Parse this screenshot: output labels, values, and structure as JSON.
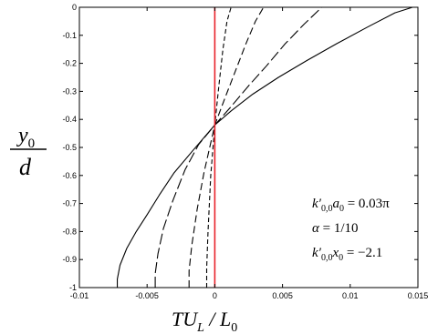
{
  "chart_data": {
    "type": "line",
    "xlim": [
      -0.01,
      0.015
    ],
    "ylim": [
      -1,
      0
    ],
    "grid": false,
    "x_ticks": [
      {
        "v": -0.01,
        "label": "-0.01"
      },
      {
        "v": -0.005,
        "label": "-0.005"
      },
      {
        "v": 0,
        "label": "0"
      },
      {
        "v": 0.005,
        "label": "0.005"
      },
      {
        "v": 0.01,
        "label": "0.01"
      },
      {
        "v": 0.015,
        "label": "0.015"
      }
    ],
    "y_ticks": [
      {
        "v": 0,
        "label": "0"
      },
      {
        "v": -0.1,
        "label": "-0.1"
      },
      {
        "v": -0.2,
        "label": "-0.2"
      },
      {
        "v": -0.3,
        "label": "-0.3"
      },
      {
        "v": -0.4,
        "label": "-0.4"
      },
      {
        "v": -0.5,
        "label": "-0.5"
      },
      {
        "v": -0.6,
        "label": "-0.6"
      },
      {
        "v": -0.7,
        "label": "-0.7"
      },
      {
        "v": -0.8,
        "label": "-0.8"
      },
      {
        "v": -0.9,
        "label": "-0.9"
      },
      {
        "v": -1,
        "label": "-1"
      }
    ],
    "xlabel": {
      "T": "TU",
      "sub": "L",
      "slash": " / L",
      "sub2": "0"
    },
    "ylabel": {
      "num": "y",
      "num_sub": "0",
      "den": "d"
    },
    "annotations": {
      "line1": {
        "k": "k′",
        "k_sub": "0,0",
        "var": "a",
        "var_sub": "0",
        "rhs": " = 0.03π"
      },
      "line2": {
        "lhs": "α",
        "rhs": " = 1/10"
      },
      "line3": {
        "k": "k′",
        "k_sub": "0,0",
        "var": "x",
        "var_sub": "0",
        "rhs": " = −2.1"
      }
    },
    "series": [
      {
        "style": "solid",
        "color": "#000000",
        "x": [
          -0.0072,
          -0.0072,
          -0.007,
          -0.0065,
          -0.0058,
          -0.005,
          -0.0041,
          -0.003,
          -0.0016,
          0,
          0.0012,
          0.0028,
          0.0047,
          0.0068,
          0.009,
          0.0113,
          0.0133,
          0.0146
        ],
        "y": [
          -1,
          -0.97,
          -0.92,
          -0.86,
          -0.8,
          -0.74,
          -0.67,
          -0.59,
          -0.51,
          -0.42,
          -0.37,
          -0.31,
          -0.25,
          -0.19,
          -0.13,
          -0.07,
          -0.02,
          0
        ]
      },
      {
        "style": "dashed",
        "color": "#000000",
        "x": [
          -0.0044,
          -0.0044,
          -0.0042,
          -0.0038,
          -0.0031,
          -0.0022,
          -0.0012,
          0,
          0.0011,
          0.0025,
          0.0038,
          0.0052,
          0.0066,
          0.0079
        ],
        "y": [
          -1,
          -0.95,
          -0.88,
          -0.79,
          -0.69,
          -0.58,
          -0.49,
          -0.42,
          -0.36,
          -0.28,
          -0.21,
          -0.13,
          -0.06,
          0
        ]
      },
      {
        "style": "dashed",
        "color": "#000000",
        "x": [
          -0.0019,
          -0.0019,
          -0.0017,
          -0.0013,
          -0.0008,
          0,
          0.0007,
          0.0015,
          0.0023,
          0.003,
          0.0036
        ],
        "y": [
          -1,
          -0.94,
          -0.85,
          -0.72,
          -0.59,
          -0.42,
          -0.33,
          -0.23,
          -0.13,
          -0.05,
          0
        ]
      },
      {
        "style": "dashed",
        "color": "#000000",
        "x": [
          -0.0006,
          -0.0006,
          -0.0005,
          -0.0003,
          0,
          0.0003,
          0.0006,
          0.0009,
          0.0012
        ],
        "y": [
          -1,
          -0.93,
          -0.8,
          -0.6,
          -0.42,
          -0.28,
          -0.15,
          -0.05,
          0
        ]
      },
      {
        "style": "solid",
        "color": "#e8222a",
        "x": [
          0,
          0
        ],
        "y": [
          -1,
          0
        ]
      }
    ]
  }
}
